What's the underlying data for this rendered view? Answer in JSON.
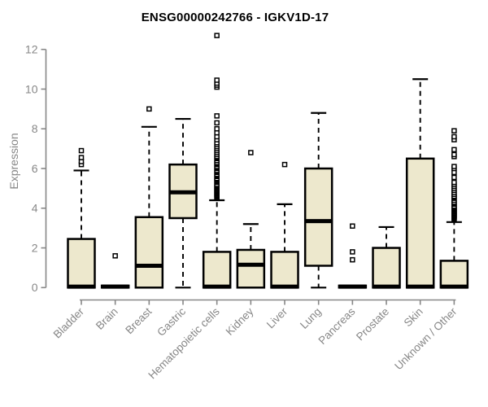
{
  "page": {
    "background": "#ffffff"
  },
  "chart_data": {
    "type": "boxplot",
    "title": "ENSG00000242766 - IGKV1D-17",
    "ylabel": "Expression",
    "xlabel": "",
    "ylim": [
      0,
      12
    ],
    "yticks": [
      0,
      2,
      4,
      6,
      8,
      10,
      12
    ],
    "grid": false,
    "legend": "none",
    "colors": {
      "box_fill": "#EDE8CD",
      "box_stroke": "#000000",
      "median": "#000000",
      "whisker": "#000000",
      "axis": "#878787",
      "tick_label": "#878787",
      "title": "#000000"
    },
    "categories": [
      "Bladder",
      "Brain",
      "Breast",
      "Gastric",
      "Hematopoietic cells",
      "Kidney",
      "Liver",
      "Lung",
      "Pancreas",
      "Prostate",
      "Skin",
      "Unknown / Other"
    ],
    "series": [
      {
        "name": "Bladder",
        "q1": 0,
        "median": 0.05,
        "q3": 2.45,
        "whisker_low": 0,
        "whisker_high": 5.9,
        "outliers": [
          6.2,
          6.35,
          6.55,
          6.9
        ]
      },
      {
        "name": "Brain",
        "q1": 0,
        "median": 0.05,
        "q3": 0.1,
        "whisker_low": 0,
        "whisker_high": 0.1,
        "outliers": [
          1.6
        ]
      },
      {
        "name": "Breast",
        "q1": 0,
        "median": 1.1,
        "q3": 3.55,
        "whisker_low": 0,
        "whisker_high": 8.1,
        "outliers": [
          9.0
        ]
      },
      {
        "name": "Gastric",
        "q1": 3.5,
        "median": 4.8,
        "q3": 6.2,
        "whisker_low": 0,
        "whisker_high": 8.5,
        "outliers": []
      },
      {
        "name": "Hematopoietic cells",
        "q1": 0,
        "median": 0.05,
        "q3": 1.8,
        "whisker_low": 0,
        "whisker_high": 4.4,
        "outliers": [
          4.5,
          4.55,
          4.6,
          4.65,
          4.7,
          4.75,
          4.8,
          4.85,
          4.9,
          4.95,
          5.0,
          5.05,
          5.1,
          5.15,
          5.2,
          5.3,
          5.35,
          5.4,
          5.45,
          5.5,
          5.6,
          5.65,
          5.7,
          5.8,
          5.85,
          5.9,
          6.0,
          6.05,
          6.1,
          6.2,
          6.25,
          6.3,
          6.4,
          6.5,
          6.55,
          6.6,
          6.7,
          6.8,
          6.9,
          7.0,
          7.1,
          7.2,
          7.3,
          7.45,
          7.6,
          7.8,
          8.0,
          8.3,
          8.65,
          10.1,
          10.2,
          10.3,
          10.45,
          12.7
        ]
      },
      {
        "name": "Kidney",
        "q1": 0,
        "median": 1.15,
        "q3": 1.9,
        "whisker_low": 0,
        "whisker_high": 3.2,
        "outliers": [
          6.8
        ]
      },
      {
        "name": "Liver",
        "q1": 0,
        "median": 0.05,
        "q3": 1.8,
        "whisker_low": 0,
        "whisker_high": 4.2,
        "outliers": [
          6.2
        ]
      },
      {
        "name": "Lung",
        "q1": 1.1,
        "median": 3.35,
        "q3": 6.0,
        "whisker_low": 0,
        "whisker_high": 8.8,
        "outliers": []
      },
      {
        "name": "Pancreas",
        "q1": 0,
        "median": 0.05,
        "q3": 0.1,
        "whisker_low": 0,
        "whisker_high": 0.1,
        "outliers": [
          1.4,
          1.8,
          3.1
        ]
      },
      {
        "name": "Prostate",
        "q1": 0,
        "median": 0.05,
        "q3": 2.0,
        "whisker_low": 0,
        "whisker_high": 3.05,
        "outliers": []
      },
      {
        "name": "Skin",
        "q1": 0,
        "median": 0.05,
        "q3": 6.5,
        "whisker_low": 0,
        "whisker_high": 10.5,
        "outliers": []
      },
      {
        "name": "Unknown / Other",
        "q1": 0,
        "median": 0.05,
        "q3": 1.35,
        "whisker_low": 0,
        "whisker_high": 3.3,
        "outliers": [
          3.45,
          3.5,
          3.55,
          3.6,
          3.65,
          3.7,
          3.75,
          3.8,
          3.85,
          3.9,
          3.95,
          4.0,
          4.05,
          4.1,
          4.2,
          4.25,
          4.3,
          4.4,
          4.5,
          4.55,
          4.6,
          4.7,
          4.8,
          4.9,
          5.0,
          5.1,
          5.2,
          5.3,
          5.55,
          5.8,
          6.0,
          6.1,
          6.6,
          6.7,
          6.95,
          7.45,
          7.6,
          7.9
        ]
      }
    ]
  }
}
